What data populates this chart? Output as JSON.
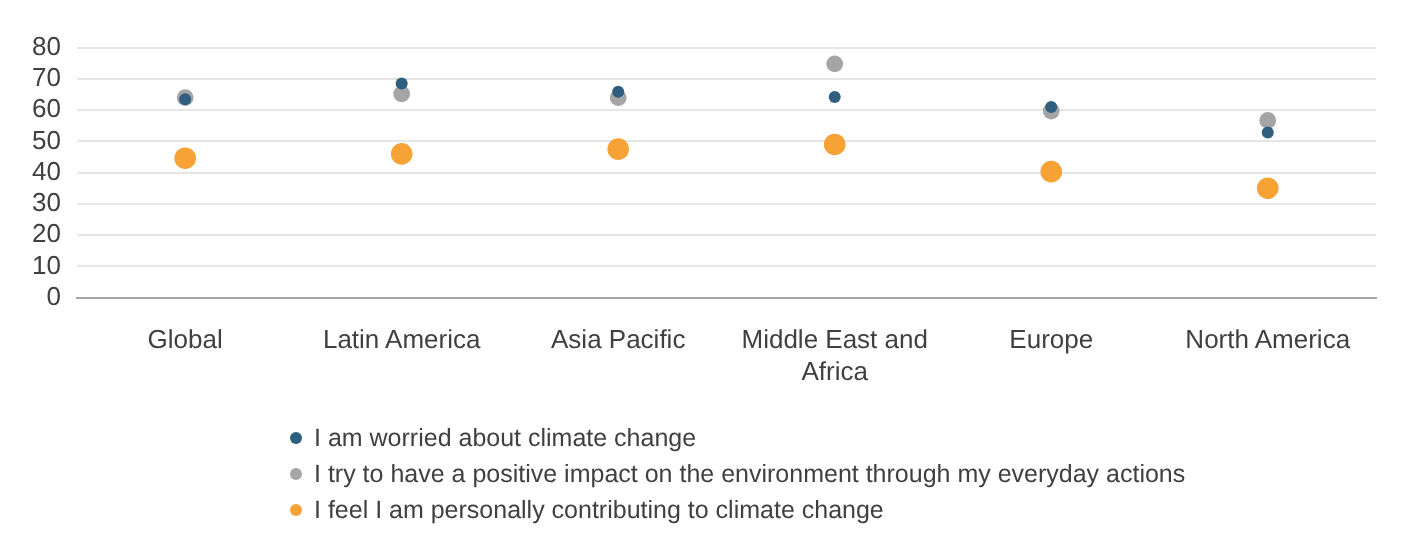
{
  "chart_data": {
    "type": "scatter",
    "categories": [
      "Global",
      "Latin America",
      "Asia Pacific",
      "Middle East and Africa",
      "Europe",
      "North America"
    ],
    "series": [
      {
        "name": "I am worried about climate change",
        "color": "#2e5f7f",
        "values": [
          63.5,
          68.5,
          65.9,
          64.2,
          61,
          52.8
        ]
      },
      {
        "name": "I try to have a positive impact on the environment through my everyday actions",
        "color": "#a5a5a5",
        "values": [
          64,
          65.2,
          64,
          74.8,
          59.7,
          56.7
        ]
      },
      {
        "name": "I feel I am personally contributing to climate change",
        "color": "#f7a234",
        "values": [
          44.6,
          46,
          47.5,
          49,
          40.3,
          35
        ]
      }
    ],
    "ylim": [
      0,
      80
    ],
    "yticks": [
      0,
      10,
      20,
      30,
      40,
      50,
      60,
      70,
      80
    ],
    "grid": "y",
    "legend": "bottom",
    "marker": "circle"
  }
}
